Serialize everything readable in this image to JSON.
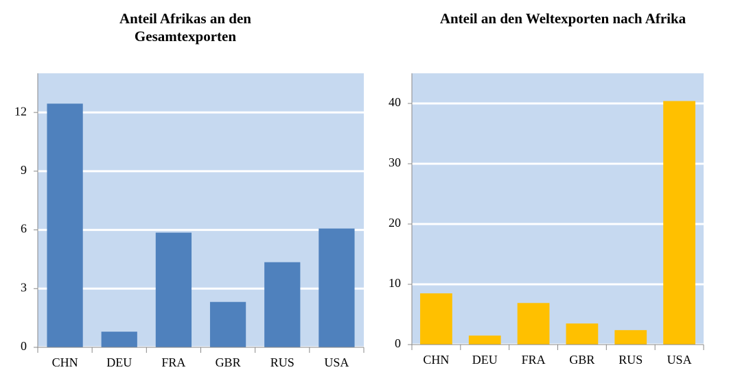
{
  "chart_data": [
    {
      "type": "bar",
      "title": "Anteil Afrikas an den Gesamtexporten",
      "categories": [
        "CHN",
        "DEU",
        "FRA",
        "GBR",
        "RUS",
        "USA"
      ],
      "values": [
        12.45,
        0.8,
        5.86,
        2.32,
        4.35,
        6.07
      ],
      "color": "#4f81bd",
      "ylim": [
        0,
        14
      ],
      "yticks": [
        0,
        3,
        6,
        9,
        12
      ],
      "grid": true
    },
    {
      "type": "bar",
      "title": "Anteil an den Weltexporten nach Afrika",
      "categories": [
        "CHN",
        "DEU",
        "FRA",
        "GBR",
        "RUS",
        "USA"
      ],
      "values": [
        8.5,
        1.5,
        6.9,
        3.5,
        2.4,
        40.4
      ],
      "color": "#ffc000",
      "ylim": [
        0,
        45
      ],
      "yticks": [
        0,
        10,
        20,
        30,
        40
      ],
      "grid": true
    }
  ]
}
